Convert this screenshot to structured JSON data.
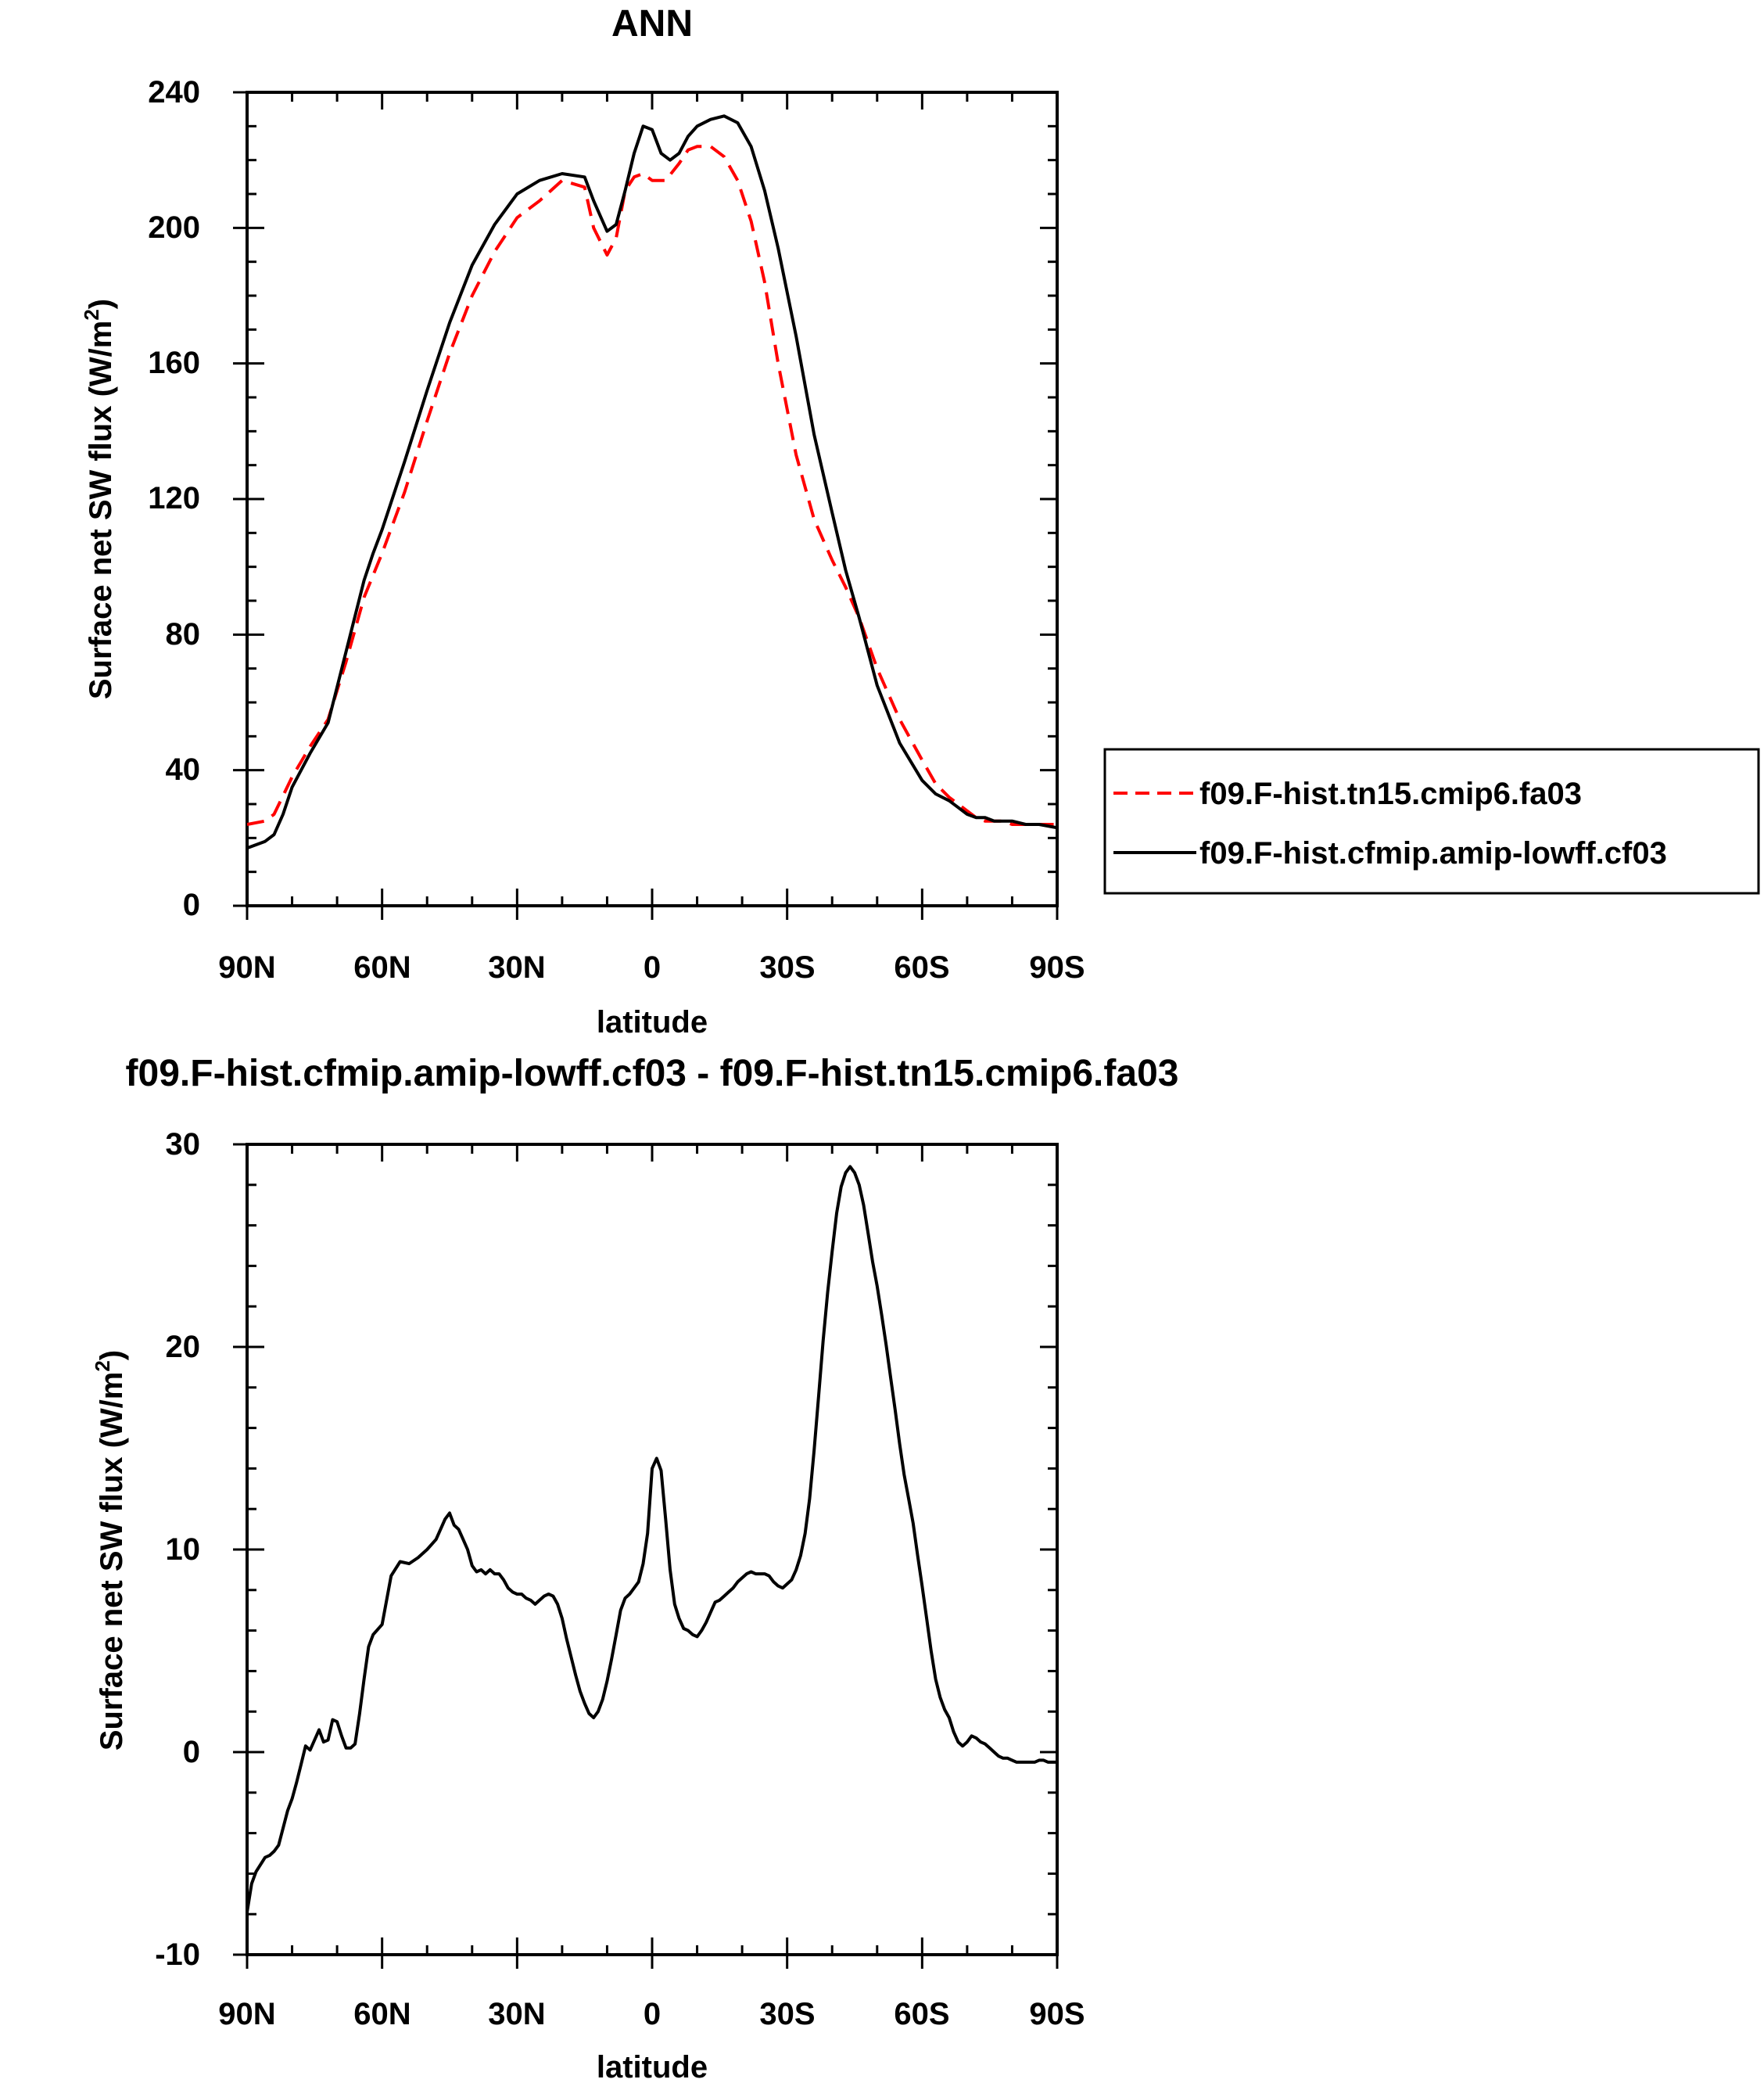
{
  "chart_data": [
    {
      "type": "line",
      "title": "ANN",
      "xlabel": "latitude",
      "ylabel": "Surface net SW flux (W/m",
      "ylabel_sup": "2",
      "ylabel_close": ")",
      "xlim": [
        90,
        -90
      ],
      "ylim": [
        0,
        240
      ],
      "xticks": [
        90,
        60,
        30,
        0,
        -30,
        -60,
        -90
      ],
      "xtick_labels": [
        "90N",
        "60N",
        "30N",
        "0",
        "30S",
        "60S",
        "90S"
      ],
      "yticks": [
        0,
        40,
        80,
        120,
        160,
        200,
        240
      ],
      "ytick_labels": [
        "0",
        "40",
        "80",
        "120",
        "160",
        "200",
        "240"
      ],
      "grid": false,
      "legend_position": "right",
      "series": [
        {
          "name": "f09.F-hist.tn15.cmip6.fa03",
          "color": "#ff0000",
          "dash": "dashed",
          "x": [
            90,
            86,
            84,
            80,
            76,
            72,
            68,
            64,
            60,
            55,
            50,
            45,
            40,
            35,
            30,
            25,
            20,
            15,
            13,
            10,
            8,
            6,
            4,
            2,
            0,
            -3,
            -6,
            -8,
            -10,
            -13,
            -16,
            -19,
            -22,
            -25,
            -28,
            -32,
            -36,
            -40,
            -43,
            -46,
            -50,
            -55,
            -60,
            -63,
            -66,
            -68,
            -70,
            -72,
            -74,
            -76,
            -78,
            -80,
            -83,
            -86,
            -90
          ],
          "y": [
            24,
            25,
            27,
            38,
            47,
            55,
            72,
            91,
            104,
            122,
            143,
            163,
            180,
            193,
            203,
            208,
            214,
            212,
            200,
            192,
            197,
            211,
            215,
            216,
            214,
            214,
            219,
            223,
            224,
            224,
            221,
            214,
            202,
            184,
            160,
            133,
            114,
            102,
            94,
            85,
            70,
            55,
            43,
            36,
            32,
            30,
            28,
            26,
            25,
            25,
            25,
            24,
            24,
            24,
            24
          ]
        },
        {
          "name": "f09.F-hist.cfmip.amip-lowff.cf03",
          "color": "#000000",
          "dash": "solid",
          "x": [
            90,
            86,
            84,
            82,
            80,
            76,
            72,
            68,
            64,
            62,
            60,
            55,
            50,
            45,
            40,
            35,
            30,
            25,
            20,
            15,
            13,
            10,
            8,
            6,
            4,
            2,
            0,
            -2,
            -4,
            -6,
            -8,
            -10,
            -13,
            -16,
            -19,
            -22,
            -25,
            -28,
            -32,
            -36,
            -40,
            -43,
            -46,
            -50,
            -55,
            -60,
            -63,
            -66,
            -68,
            -70,
            -72,
            -74,
            -76,
            -78,
            -80,
            -83,
            -86,
            -90
          ],
          "y": [
            17,
            19,
            21,
            27,
            35,
            45,
            54,
            75,
            96,
            104,
            111,
            131,
            152,
            172,
            189,
            201,
            210,
            214,
            216,
            215,
            208,
            199,
            201,
            211,
            222,
            230,
            229,
            222,
            220,
            222,
            227,
            230,
            232,
            233,
            231,
            224,
            211,
            194,
            168,
            139,
            116,
            99,
            85,
            65,
            48,
            37,
            33,
            31,
            29,
            27,
            26,
            26,
            25,
            25,
            25,
            24,
            24,
            23
          ]
        }
      ]
    },
    {
      "type": "line",
      "title": "f09.F-hist.cfmip.amip-lowff.cf03 - f09.F-hist.tn15.cmip6.fa03",
      "xlabel": "latitude",
      "ylabel": "Surface net SW flux (W/m",
      "ylabel_sup": "2",
      "ylabel_close": ")",
      "xlim": [
        90,
        -90
      ],
      "ylim": [
        -10,
        30
      ],
      "xticks": [
        90,
        60,
        30,
        0,
        -30,
        -60,
        -90
      ],
      "xtick_labels": [
        "90N",
        "60N",
        "30N",
        "0",
        "30S",
        "60S",
        "90S"
      ],
      "yticks": [
        -10,
        0,
        10,
        20,
        30
      ],
      "ytick_labels": [
        "-10",
        "0",
        "10",
        "20",
        "30"
      ],
      "grid": false,
      "series": [
        {
          "color": "#000000",
          "dash": "solid",
          "x": [
            90,
            89,
            88,
            86,
            85,
            84,
            83,
            81,
            80,
            79,
            78,
            77,
            76,
            75,
            74,
            73,
            72,
            71,
            70,
            69,
            68,
            67,
            66,
            65,
            64,
            63,
            62,
            60,
            58,
            56,
            54,
            52,
            50,
            48,
            46,
            45,
            44,
            43,
            42,
            41,
            40,
            39,
            38,
            37,
            36,
            35,
            34,
            33,
            32,
            31,
            30,
            29,
            28,
            27,
            26,
            25,
            24,
            23,
            22,
            21,
            20,
            19,
            18,
            17,
            16,
            15,
            14,
            13,
            12,
            11,
            10,
            9,
            8,
            7,
            6,
            5,
            4,
            3,
            2,
            1,
            0,
            -1,
            -2,
            -3,
            -4,
            -5,
            -6,
            -7,
            -8,
            -9,
            -10,
            -11,
            -12,
            -13,
            -14,
            -15,
            -16,
            -17,
            -18,
            -19,
            -20,
            -21,
            -22,
            -23,
            -24,
            -25,
            -26,
            -27,
            -28,
            -29,
            -30,
            -31,
            -32,
            -33,
            -34,
            -35,
            -36,
            -37,
            -38,
            -39,
            -40,
            -41,
            -42,
            -43,
            -44,
            -45,
            -46,
            -47,
            -48,
            -49,
            -50,
            -51,
            -52,
            -53,
            -54,
            -55,
            -56,
            -57,
            -58,
            -59,
            -60,
            -61,
            -62,
            -63,
            -64,
            -65,
            -66,
            -67,
            -68,
            -69,
            -70,
            -71,
            -72,
            -73,
            -74,
            -75,
            -76,
            -77,
            -78,
            -79,
            -80,
            -81,
            -82,
            -83,
            -84,
            -85,
            -86,
            -87,
            -88,
            -89,
            -90
          ],
          "y": [
            -7.9,
            -6.5,
            -5.9,
            -5.2,
            -5.1,
            -4.9,
            -4.6,
            -2.9,
            -2.3,
            -1.5,
            -0.6,
            0.3,
            0.1,
            0.6,
            1.1,
            0.5,
            0.6,
            1.6,
            1.5,
            0.8,
            0.2,
            0.2,
            0.4,
            1.9,
            3.6,
            5.2,
            5.8,
            6.3,
            8.7,
            9.4,
            9.3,
            9.6,
            10.0,
            10.5,
            11.5,
            11.8,
            11.2,
            11.0,
            10.5,
            10.0,
            9.2,
            8.9,
            9.0,
            8.8,
            9.0,
            8.8,
            8.8,
            8.5,
            8.1,
            7.9,
            7.8,
            7.8,
            7.6,
            7.5,
            7.3,
            7.5,
            7.7,
            7.8,
            7.7,
            7.3,
            6.6,
            5.6,
            4.7,
            3.8,
            3.0,
            2.4,
            1.9,
            1.7,
            2.0,
            2.6,
            3.5,
            4.6,
            5.8,
            7.0,
            7.6,
            7.8,
            8.1,
            8.4,
            9.3,
            10.8,
            14.0,
            14.5,
            13.9,
            11.5,
            9.0,
            7.3,
            6.6,
            6.1,
            6.0,
            5.8,
            5.7,
            6.0,
            6.4,
            6.9,
            7.4,
            7.5,
            7.7,
            7.9,
            8.1,
            8.4,
            8.6,
            8.8,
            8.9,
            8.8,
            8.8,
            8.8,
            8.7,
            8.4,
            8.2,
            8.1,
            8.3,
            8.5,
            9.0,
            9.7,
            10.8,
            12.5,
            14.9,
            17.6,
            20.3,
            22.7,
            24.7,
            26.6,
            27.9,
            28.6,
            28.9,
            28.6,
            28.0,
            27.0,
            25.6,
            24.2,
            23.0,
            21.6,
            20.1,
            18.5,
            16.9,
            15.2,
            13.7,
            12.5,
            11.3,
            9.7,
            8.2,
            6.6,
            5.0,
            3.6,
            2.7,
            2.1,
            1.7,
            1.0,
            0.5,
            0.3,
            0.5,
            0.8,
            0.7,
            0.5,
            0.4,
            0.2,
            0.0,
            -0.2,
            -0.3,
            -0.3,
            -0.4,
            -0.5,
            -0.5,
            -0.5,
            -0.5,
            -0.5,
            -0.4,
            -0.4,
            -0.5,
            -0.5,
            -0.5
          ]
        }
      ]
    }
  ]
}
